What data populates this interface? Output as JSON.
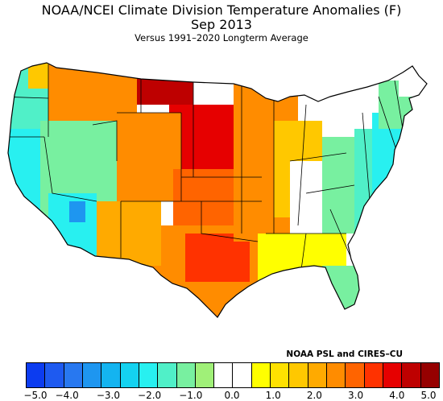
{
  "title": "NOAA/NCEI Climate Division Temperature Anomalies (F)",
  "subtitle": "Sep 2013",
  "subtitle2": "Versus 1991–2020 Longterm Average",
  "credit": "NOAA PSL and CIRES–CU",
  "colorbar": {
    "colors": [
      "#0c3cf0",
      "#1e5af0",
      "#2878f0",
      "#1e96f0",
      "#14b4f0",
      "#14d2f0",
      "#28f0f0",
      "#50f0c8",
      "#78f0a0",
      "#a0f078",
      "#ffffff",
      "#ffffff",
      "#ffff00",
      "#ffe100",
      "#ffc800",
      "#ffaa00",
      "#ff8c00",
      "#ff6400",
      "#ff3200",
      "#e60000",
      "#be0000",
      "#960000"
    ],
    "tick_labels": [
      "−5.0",
      "−4.0",
      "−3.0",
      "−2.0",
      "−1.0",
      "0.0",
      "1.0",
      "2.0",
      "3.0",
      "4.0",
      "5.0"
    ]
  },
  "map": {
    "state_borders_color": "#000000",
    "regions": [
      {
        "name": "pacific-northwest",
        "color": "#50f0c8"
      },
      {
        "name": "washington-north",
        "color": "#ffc800"
      },
      {
        "name": "idaho-montana",
        "color": "#ff8c00"
      },
      {
        "name": "north-dakota",
        "color": "#be0000"
      },
      {
        "name": "south-dakota-nebraska",
        "color": "#e60000"
      },
      {
        "name": "california",
        "color": "#28f0f0"
      },
      {
        "name": "nevada-utah",
        "color": "#78f0a0"
      },
      {
        "name": "arizona",
        "color": "#28f0f0"
      },
      {
        "name": "arizona-central",
        "color": "#1e96f0"
      },
      {
        "name": "colorado-wyoming",
        "color": "#ff8c00"
      },
      {
        "name": "kansas-oklahoma",
        "color": "#ff6400"
      },
      {
        "name": "texas",
        "color": "#ff8c00"
      },
      {
        "name": "texas-central",
        "color": "#ff3200"
      },
      {
        "name": "new-mexico",
        "color": "#ffaa00"
      },
      {
        "name": "upper-midwest",
        "color": "#ff8c00"
      },
      {
        "name": "great-lakes",
        "color": "#ffc800"
      },
      {
        "name": "ohio-valley",
        "color": "#ffffff"
      },
      {
        "name": "southeast",
        "color": "#ffff00"
      },
      {
        "name": "florida",
        "color": "#78f0a0"
      },
      {
        "name": "appalachia",
        "color": "#78f0a0"
      },
      {
        "name": "mid-atlantic",
        "color": "#50f0c8"
      },
      {
        "name": "east-coast",
        "color": "#28f0f0"
      },
      {
        "name": "new-england",
        "color": "#78f0a0"
      },
      {
        "name": "maine",
        "color": "#ffffff"
      }
    ]
  }
}
